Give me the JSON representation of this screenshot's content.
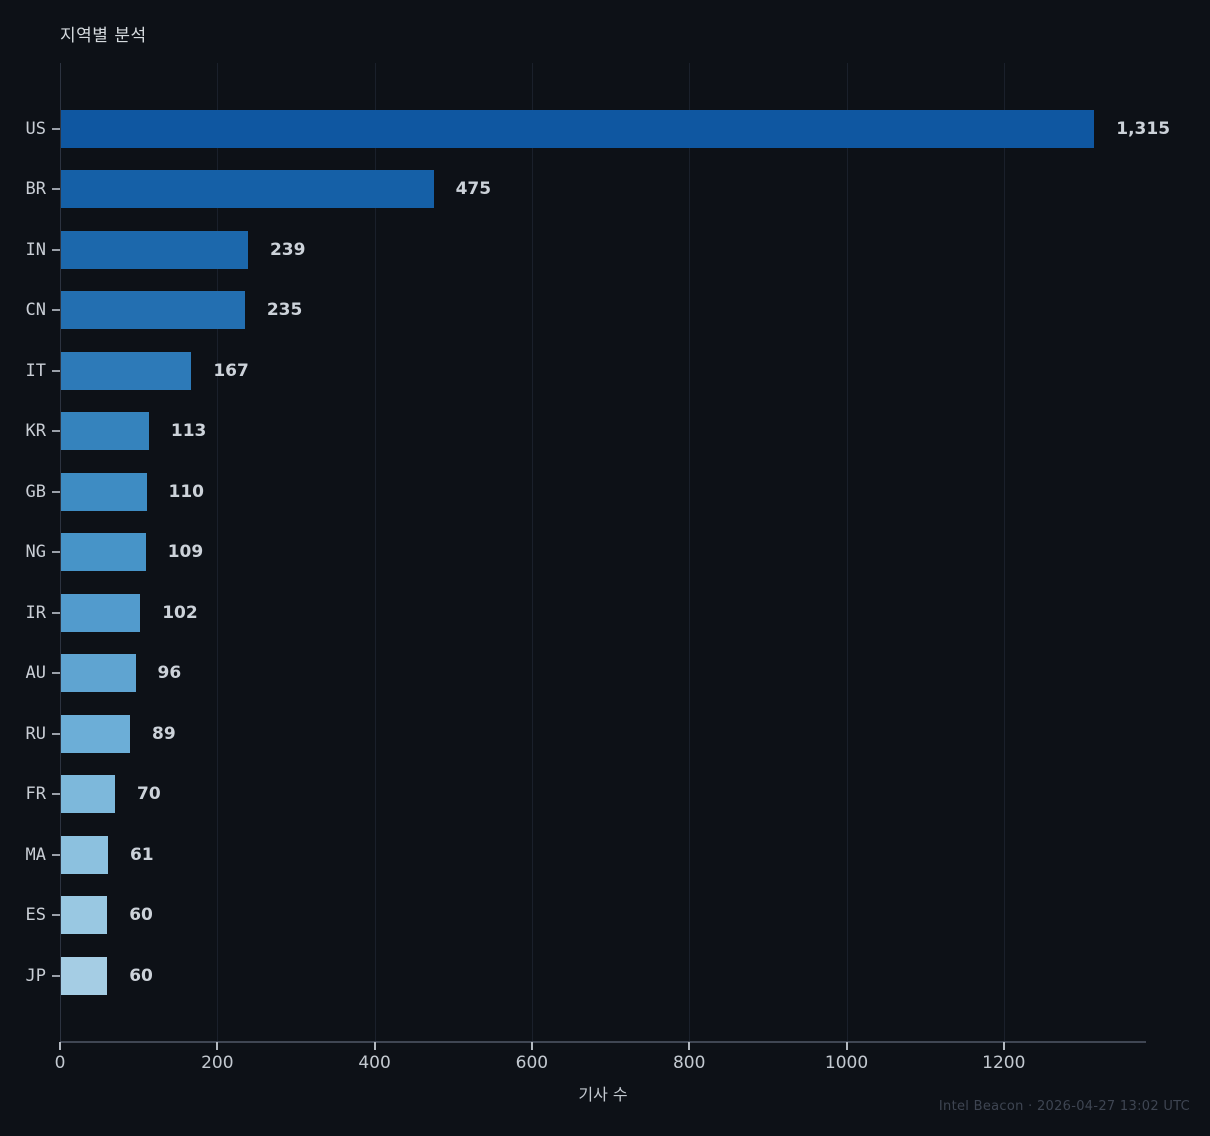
{
  "title": "지역별 분석",
  "footer": "Intel Beacon · 2026-04-27 13:02 UTC",
  "colors": {
    "background": "#0d1117",
    "gridline": "#1a202b",
    "axis_spine": "#3f4653",
    "value_label_text": "#ccd2d9",
    "category_label_text": "#c9ced5",
    "tick_label_text": "#c3c9d0",
    "title_text": "#d5dade",
    "footer_text": "#3e4552"
  },
  "chart_data": {
    "type": "bar",
    "orientation": "horizontal",
    "title": "지역별 분석",
    "xlabel": "기사 수",
    "ylabel": "",
    "categories": [
      "US",
      "BR",
      "IN",
      "CN",
      "IT",
      "KR",
      "GB",
      "NG",
      "IR",
      "AU",
      "RU",
      "FR",
      "MA",
      "ES",
      "JP"
    ],
    "values": [
      1315,
      475,
      239,
      235,
      167,
      113,
      110,
      109,
      102,
      96,
      89,
      70,
      61,
      60,
      60
    ],
    "value_labels": [
      "1,315",
      "475",
      "239",
      "235",
      "167",
      "113",
      "110",
      "109",
      "102",
      "96",
      "89",
      "70",
      "61",
      "60",
      "60"
    ],
    "bar_colors": [
      "#0f57a1",
      "#1560a7",
      "#1c68ac",
      "#236fb1",
      "#2d7ab8",
      "#3583bd",
      "#3e8cc3",
      "#4794c8",
      "#529bcd",
      "#5fa4d1",
      "#6caed7",
      "#7db8db",
      "#8cc1df",
      "#99c8e2",
      "#a5cde4"
    ],
    "x_ticks": [
      0,
      200,
      400,
      600,
      800,
      1000,
      1200
    ],
    "xlim": [
      0,
      1381
    ],
    "grid": "vertical-gridlines-on",
    "legend": "none"
  }
}
